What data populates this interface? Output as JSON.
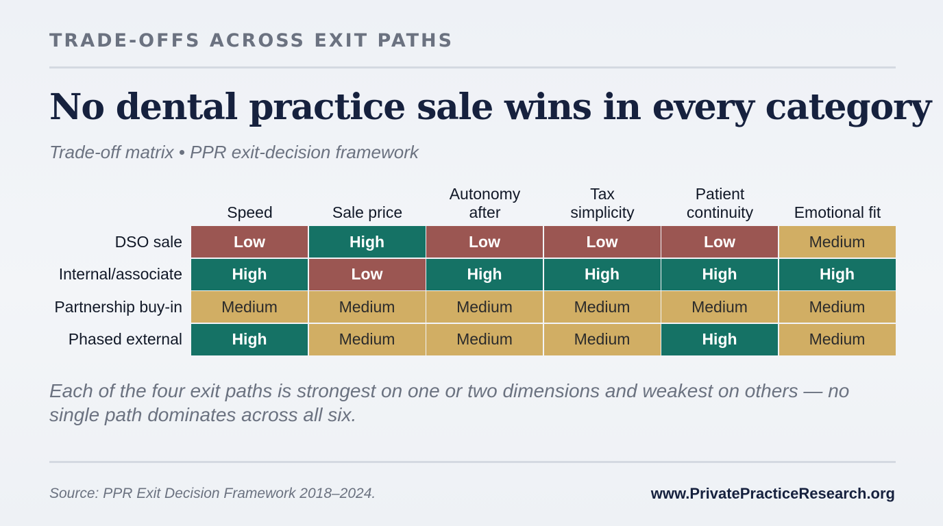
{
  "header": {
    "eyebrow": "TRADE-OFFS ACROSS EXIT PATHS",
    "title": "No dental practice sale wins in every category",
    "subtitle": "Trade-off matrix • PPR exit-decision framework"
  },
  "chart_data": {
    "type": "table",
    "columns": [
      [
        "Speed"
      ],
      [
        "Sale price"
      ],
      [
        "Autonomy",
        "after"
      ],
      [
        "Tax",
        "simplicity"
      ],
      [
        "Patient",
        "continuity"
      ],
      [
        "Emotional fit"
      ]
    ],
    "rows": [
      "DSO sale",
      "Internal/associate",
      "Partnership buy-in",
      "Phased external"
    ],
    "values": [
      [
        "Low",
        "High",
        "Low",
        "Low",
        "Low",
        "Medium"
      ],
      [
        "High",
        "Low",
        "High",
        "High",
        "High",
        "High"
      ],
      [
        "Medium",
        "Medium",
        "Medium",
        "Medium",
        "Medium",
        "Medium"
      ],
      [
        "High",
        "Medium",
        "Medium",
        "Medium",
        "High",
        "Medium"
      ]
    ],
    "colors": {
      "Low": "#9b5652",
      "High": "#157265",
      "Medium": "#d1ae64"
    }
  },
  "takeaway": "Each of the four exit paths is strongest on one or two dimensions and weakest on others — no single path dominates across all six.",
  "footer": {
    "source": "Source: PPR Exit Decision Framework 2018–2024.",
    "website": "www.PrivatePracticeResearch.org"
  }
}
